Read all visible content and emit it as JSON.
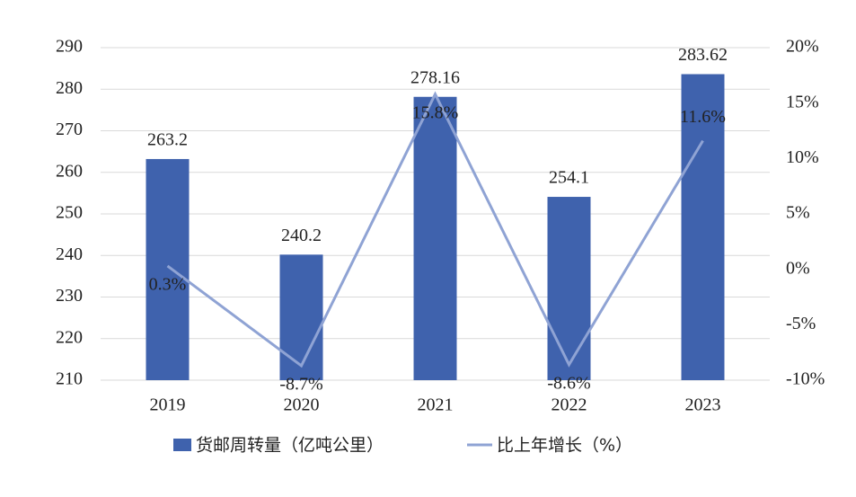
{
  "chart_data": {
    "type": "bar-line",
    "categories": [
      "2019",
      "2020",
      "2021",
      "2022",
      "2023"
    ],
    "series": [
      {
        "name": "货邮周转量（亿吨公里）",
        "type": "bar",
        "color": "#3f62ad",
        "values": [
          263.2,
          240.2,
          278.16,
          254.1,
          283.62
        ]
      },
      {
        "name": "比上年增长（%）",
        "type": "line",
        "axis": "y2",
        "color": "#8fa3d4",
        "values": [
          0.3,
          -8.7,
          15.8,
          -8.6,
          11.6
        ],
        "value_labels": [
          "0.3%",
          "-8.7%",
          "15.8%",
          "-8.6%",
          "11.6%"
        ]
      }
    ],
    "ylim": [
      210,
      290
    ],
    "yticks": [
      210,
      220,
      230,
      240,
      250,
      260,
      270,
      280,
      290
    ],
    "y2lim": [
      -10,
      20
    ],
    "y2ticks": [
      {
        "value": -10,
        "label": "-10%"
      },
      {
        "value": -5,
        "label": "-5%"
      },
      {
        "value": 0,
        "label": "0%"
      },
      {
        "value": 5,
        "label": "5%"
      },
      {
        "value": 10,
        "label": "10%"
      },
      {
        "value": 15,
        "label": "15%"
      },
      {
        "value": 20,
        "label": "20%"
      }
    ],
    "grid": true,
    "legend": "bottom"
  }
}
